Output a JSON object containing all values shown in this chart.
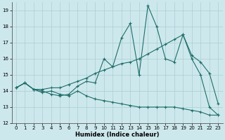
{
  "xlabel": "Humidex (Indice chaleur)",
  "bg_color": "#cde8ec",
  "grid_color": "#aacdd4",
  "line_color": "#1e6e6a",
  "xlim": [
    -0.5,
    23.5
  ],
  "ylim": [
    12,
    19.5
  ],
  "yticks": [
    12,
    13,
    14,
    15,
    16,
    17,
    18,
    19
  ],
  "xticks": [
    0,
    1,
    2,
    3,
    4,
    5,
    6,
    7,
    8,
    9,
    10,
    11,
    12,
    13,
    14,
    15,
    16,
    17,
    18,
    19,
    20,
    21,
    22,
    23
  ],
  "line1_x": [
    0,
    1,
    2,
    3,
    4,
    5,
    6,
    7,
    8,
    9,
    10,
    11,
    12,
    13,
    14,
    15,
    16,
    17,
    18,
    19,
    20,
    21,
    22,
    23
  ],
  "line1_y": [
    14.2,
    14.5,
    14.1,
    13.9,
    14.0,
    13.8,
    13.7,
    14.0,
    13.7,
    13.5,
    13.4,
    13.3,
    13.2,
    13.1,
    13.0,
    13.0,
    13.0,
    13.0,
    13.0,
    12.9,
    12.8,
    12.7,
    12.5,
    12.5
  ],
  "line2_x": [
    0,
    1,
    2,
    3,
    4,
    5,
    6,
    7,
    8,
    9,
    10,
    11,
    12,
    13,
    14,
    15,
    16,
    17,
    18,
    19,
    20,
    21,
    22,
    23
  ],
  "line2_y": [
    14.2,
    14.5,
    14.1,
    14.0,
    13.8,
    13.7,
    13.8,
    14.3,
    14.6,
    14.5,
    16.0,
    15.5,
    17.3,
    18.2,
    15.0,
    19.3,
    18.0,
    16.0,
    15.8,
    17.5,
    16.0,
    15.0,
    13.0,
    12.5
  ],
  "line3_x": [
    0,
    1,
    2,
    3,
    4,
    5,
    6,
    7,
    8,
    9,
    10,
    11,
    12,
    13,
    14,
    15,
    16,
    17,
    18,
    19,
    20,
    21,
    22,
    23
  ],
  "line3_y": [
    14.2,
    14.5,
    14.1,
    14.1,
    14.2,
    14.2,
    14.4,
    14.6,
    14.8,
    15.1,
    15.3,
    15.5,
    15.7,
    15.8,
    16.0,
    16.3,
    16.6,
    16.9,
    17.2,
    17.5,
    16.2,
    15.8,
    15.1,
    13.2
  ]
}
